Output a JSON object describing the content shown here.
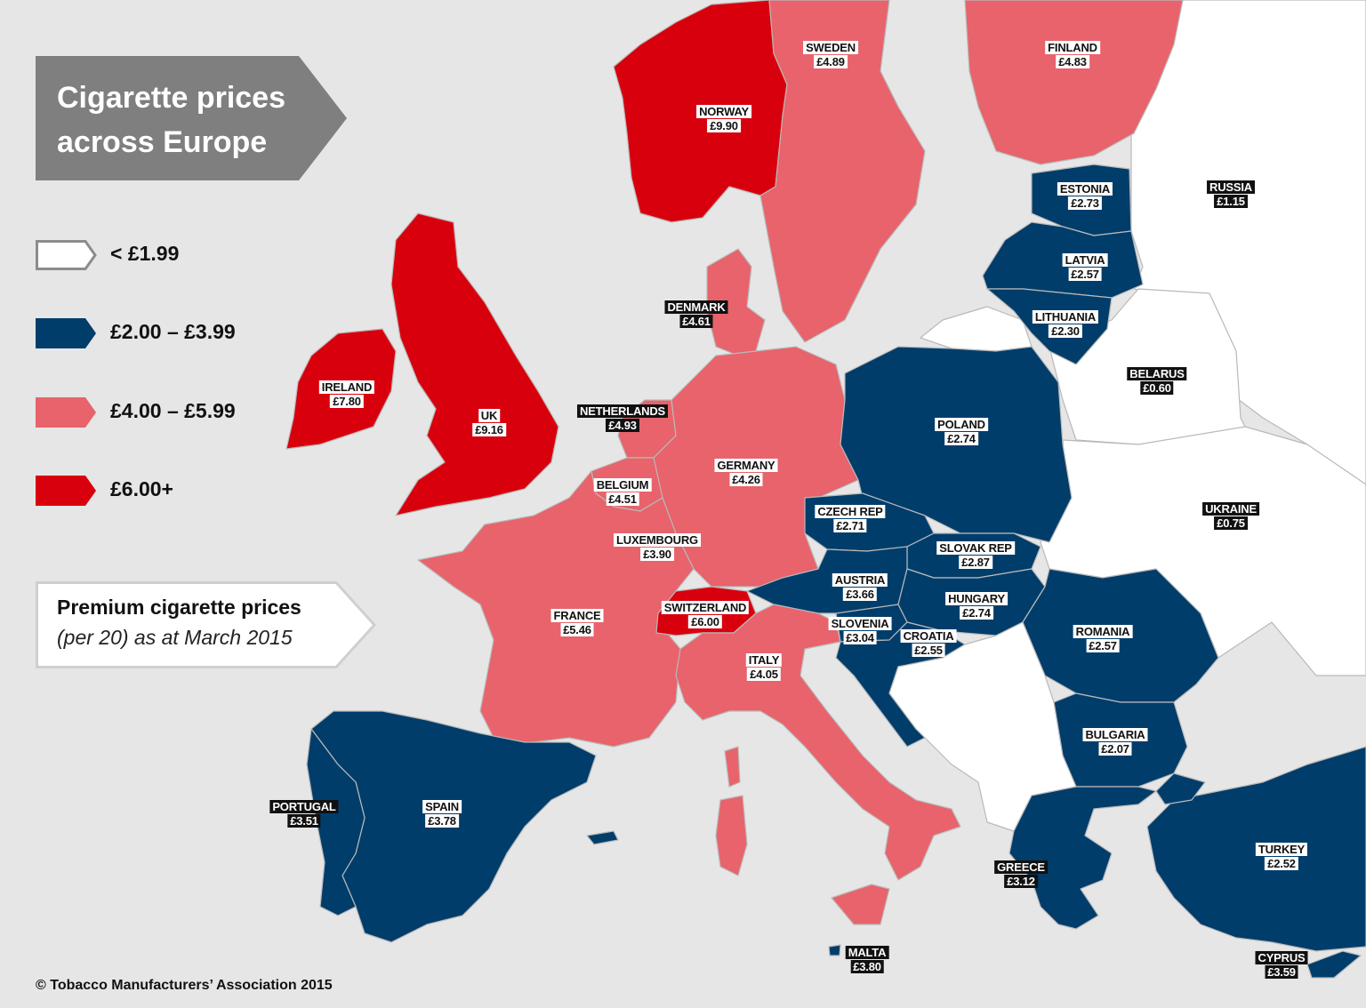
{
  "title": "Cigarette prices across Europe",
  "subtitle": {
    "line1": "Premium cigarette prices",
    "line2": "(per 20) as at March 2015"
  },
  "copyright": "© Tobacco Manufacturers’ Association 2015",
  "colors": {
    "sea": "#e6e6e6",
    "below_1_99": "#ffffff",
    "band_2_to_3_99": "#003d6b",
    "band_4_to_5_99": "#e8636b",
    "band_6_plus": "#d9000d",
    "title_banner": "#7f7f7f"
  },
  "legend": [
    {
      "label": "< £1.99",
      "color": "#ffffff"
    },
    {
      "label": "£2.00 – £3.99",
      "color": "#003d6b"
    },
    {
      "label": "£4.00 – £5.99",
      "color": "#e8636b"
    },
    {
      "label": "£6.00+",
      "color": "#d9000d"
    }
  ],
  "countries": {
    "norway": {
      "name": "NORWAY",
      "price": "£9.90"
    },
    "sweden": {
      "name": "SWEDEN",
      "price": "£4.89"
    },
    "finland": {
      "name": "FINLAND",
      "price": "£4.83"
    },
    "russia": {
      "name": "RUSSIA",
      "price": "£1.15"
    },
    "estonia": {
      "name": "ESTONIA",
      "price": "£2.73"
    },
    "latvia": {
      "name": "LATVIA",
      "price": "£2.57"
    },
    "lithuania": {
      "name": "LITHUANIA",
      "price": "£2.30"
    },
    "denmark": {
      "name": "DENMARK",
      "price": "£4.61"
    },
    "ireland": {
      "name": "IRELAND",
      "price": "£7.80"
    },
    "uk": {
      "name": "UK",
      "price": "£9.16"
    },
    "netherlands": {
      "name": "NETHERLANDS",
      "price": "£4.93"
    },
    "belarus": {
      "name": "BELARUS",
      "price": "£0.60"
    },
    "poland": {
      "name": "POLAND",
      "price": "£2.74"
    },
    "germany": {
      "name": "GERMANY",
      "price": "£4.26"
    },
    "belgium": {
      "name": "BELGIUM",
      "price": "£4.51"
    },
    "czech_rep": {
      "name": "CZECH REP",
      "price": "£2.71"
    },
    "ukraine": {
      "name": "UKRAINE",
      "price": "£0.75"
    },
    "luxembourg": {
      "name": "LUXEMBOURG",
      "price": "£3.90"
    },
    "slovak_rep": {
      "name": "SLOVAK REP",
      "price": "£2.87"
    },
    "austria": {
      "name": "AUSTRIA",
      "price": "£3.66"
    },
    "hungary": {
      "name": "HUNGARY",
      "price": "£2.74"
    },
    "switzerland": {
      "name": "SWITZERLAND",
      "price": "£6.00"
    },
    "france": {
      "name": "FRANCE",
      "price": "£5.46"
    },
    "slovenia": {
      "name": "SLOVENIA",
      "price": "£3.04"
    },
    "croatia": {
      "name": "CROATIA",
      "price": "£2.55"
    },
    "romania": {
      "name": "ROMANIA",
      "price": "£2.57"
    },
    "italy": {
      "name": "ITALY",
      "price": "£4.05"
    },
    "bulgaria": {
      "name": "BULGARIA",
      "price": "£2.07"
    },
    "portugal": {
      "name": "PORTUGAL",
      "price": "£3.51"
    },
    "spain": {
      "name": "SPAIN",
      "price": "£3.78"
    },
    "turkey": {
      "name": "TURKEY",
      "price": "£2.52"
    },
    "greece": {
      "name": "GREECE",
      "price": "£3.12"
    },
    "malta": {
      "name": "MALTA",
      "price": "£3.80"
    },
    "cyprus": {
      "name": "CYPRUS",
      "price": "£3.59"
    }
  }
}
